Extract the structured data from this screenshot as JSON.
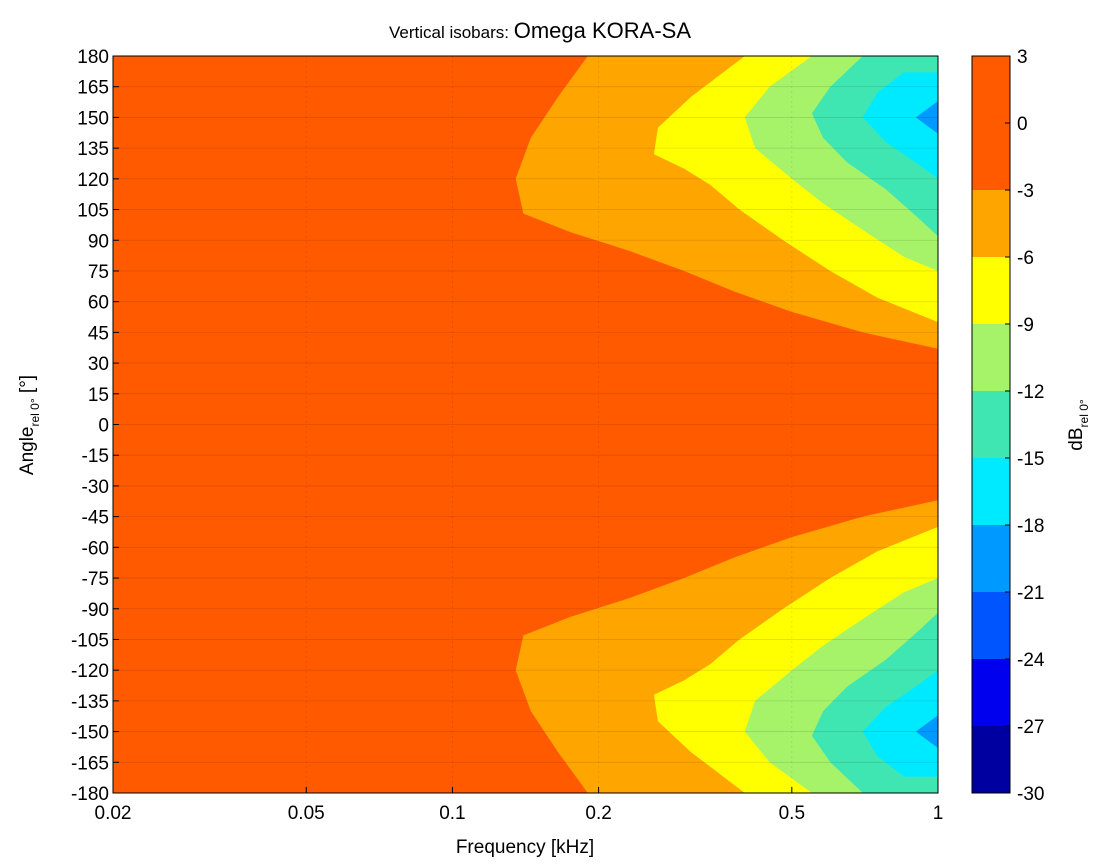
{
  "chart_data": {
    "type": "heatmap",
    "title": {
      "prefix": "Vertical isobars: ",
      "main": "Omega KORA-SA"
    },
    "xlabel": "Frequency [kHz]",
    "ylabel": {
      "base": "Angle",
      "sub": "rel 0°",
      "suffix": " [°]"
    },
    "colorbar_label": {
      "base": "dB",
      "sub": "rel 0°"
    },
    "x_scale": "log",
    "xlim": [
      0.02,
      1
    ],
    "ylim": [
      -180,
      180
    ],
    "x_ticks": [
      0.02,
      0.05,
      0.1,
      0.2,
      0.5,
      1
    ],
    "x_tick_labels": [
      "0.02",
      "0.05",
      "0.1",
      "0.2",
      "0.5",
      "1"
    ],
    "y_ticks": [
      180,
      165,
      150,
      135,
      120,
      105,
      90,
      75,
      60,
      45,
      30,
      15,
      0,
      -15,
      -30,
      -45,
      -60,
      -75,
      -90,
      -105,
      -120,
      -135,
      -150,
      -165,
      -180
    ],
    "y_tick_labels": [
      "180",
      "165",
      "150",
      "135",
      "120",
      "105",
      "90",
      "75",
      "60",
      "45",
      "30",
      "15",
      "0",
      "-15",
      "-30",
      "-45",
      "-60",
      "-75",
      "-90",
      "-105",
      "-120",
      "-135",
      "-150",
      "-165",
      "-180"
    ],
    "colorbar_ticks": [
      3,
      0,
      -3,
      -6,
      -9,
      -12,
      -15,
      -18,
      -21,
      -24,
      -27,
      -30
    ],
    "colorbar_tick_labels": [
      "3",
      "0",
      "-3",
      "-6",
      "-9",
      "-12",
      "-15",
      "-18",
      "-21",
      "-24",
      "-27",
      "-30"
    ],
    "levels": [
      {
        "range": [
          -3,
          3
        ],
        "color": "#ff5a00"
      },
      {
        "range": [
          -6,
          -3
        ],
        "color": "#ffa500"
      },
      {
        "range": [
          -9,
          -6
        ],
        "color": "#ffff00"
      },
      {
        "range": [
          -12,
          -9
        ],
        "color": "#a6f36a"
      },
      {
        "range": [
          -15,
          -12
        ],
        "color": "#40e6b2"
      },
      {
        "range": [
          -18,
          -15
        ],
        "color": "#00eaff"
      },
      {
        "range": [
          -21,
          -18
        ],
        "color": "#0099ff"
      },
      {
        "range": [
          -24,
          -21
        ],
        "color": "#0055ff"
      },
      {
        "range": [
          -27,
          -24
        ],
        "color": "#0000ee"
      },
      {
        "range": [
          -30,
          -27
        ],
        "color": "#0000a0"
      }
    ],
    "contours_upper_half": [
      {
        "level": -3,
        "points": [
          [
            0.19,
            180
          ],
          [
            0.165,
            160
          ],
          [
            0.145,
            140
          ],
          [
            0.135,
            120
          ],
          [
            0.14,
            103
          ],
          [
            0.175,
            94
          ],
          [
            0.23,
            85
          ],
          [
            0.3,
            75
          ],
          [
            0.38,
            65
          ],
          [
            0.5,
            55
          ],
          [
            0.7,
            45
          ],
          [
            1.0,
            37
          ]
        ]
      },
      {
        "level": -6,
        "points": [
          [
            0.4,
            180
          ],
          [
            0.31,
            160
          ],
          [
            0.265,
            145
          ],
          [
            0.26,
            132
          ],
          [
            0.3,
            125
          ],
          [
            0.34,
            117
          ],
          [
            0.39,
            105
          ],
          [
            0.48,
            90
          ],
          [
            0.6,
            75
          ],
          [
            0.75,
            62
          ],
          [
            1.0,
            50
          ]
        ]
      },
      {
        "level": -9,
        "points": [
          [
            0.55,
            180
          ],
          [
            0.45,
            165
          ],
          [
            0.4,
            150
          ],
          [
            0.42,
            135
          ],
          [
            0.5,
            120
          ],
          [
            0.58,
            108
          ],
          [
            0.7,
            95
          ],
          [
            0.85,
            82
          ],
          [
            1.0,
            75
          ]
        ]
      },
      {
        "level": -12,
        "points": [
          [
            0.7,
            180
          ],
          [
            0.6,
            165
          ],
          [
            0.55,
            152
          ],
          [
            0.58,
            140
          ],
          [
            0.65,
            128
          ],
          [
            0.78,
            115
          ],
          [
            0.9,
            102
          ],
          [
            1.0,
            92
          ]
        ]
      },
      {
        "level": -15,
        "points": [
          [
            0.85,
            172
          ],
          [
            0.75,
            162
          ],
          [
            0.7,
            150
          ],
          [
            0.78,
            138
          ],
          [
            0.9,
            128
          ],
          [
            1.0,
            120
          ]
        ]
      },
      {
        "level": -18,
        "points": [
          [
            1.0,
            158
          ],
          [
            0.9,
            150
          ],
          [
            1.0,
            142
          ]
        ]
      }
    ],
    "grid": true,
    "legend": "colorbar-right"
  }
}
